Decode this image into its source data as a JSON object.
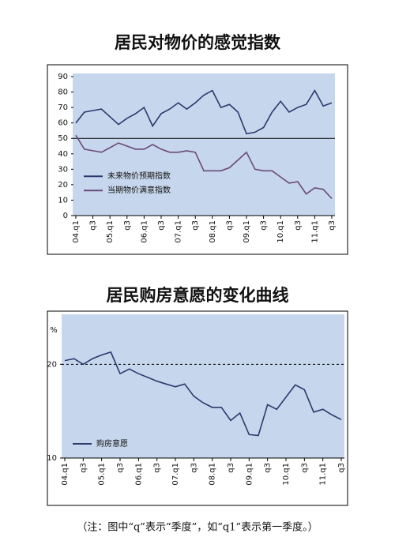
{
  "chart_data": [
    {
      "type": "line",
      "title": "居民对物价的感觉指数",
      "categories": [
        "04.q1",
        null,
        "q3",
        null,
        "05.q1",
        null,
        "q3",
        null,
        "06.q1",
        null,
        "q3",
        null,
        "07.q1",
        null,
        "q3",
        null,
        "08.q1",
        null,
        "q3",
        null,
        "09.q1",
        null,
        "q3",
        null,
        "10.q1",
        null,
        "q3",
        null,
        "11.q1",
        null,
        "q3"
      ],
      "series": [
        {
          "name": "未来物价预期指数",
          "color": "#2a3a6e",
          "values": [
            60,
            67,
            68,
            69,
            64,
            59,
            63,
            66,
            70,
            58,
            66,
            69,
            73,
            69,
            73,
            78,
            81,
            70,
            72,
            67,
            53,
            54,
            57,
            67,
            74,
            67,
            70,
            72,
            81,
            71,
            73
          ]
        },
        {
          "name": "当期物价满意指数",
          "color": "#6a4a78",
          "values": [
            52,
            43,
            42,
            41,
            44,
            47,
            45,
            43,
            43,
            46,
            43,
            41,
            41,
            42,
            41,
            29,
            29,
            29,
            31,
            36,
            41,
            30,
            29,
            29,
            25,
            21,
            22,
            14,
            18,
            17,
            11
          ]
        }
      ],
      "ylim": [
        0,
        90
      ],
      "yticks": [
        0,
        10,
        20,
        30,
        40,
        50,
        60,
        70,
        80,
        90
      ],
      "break_at": 50,
      "legend": "left"
    },
    {
      "type": "line",
      "title": "居民购房意愿的变化曲线",
      "y_label": "%",
      "categories": [
        "04.q1",
        null,
        "q3",
        null,
        "05.q1",
        null,
        "q3",
        null,
        "06.q1",
        null,
        "q3",
        null,
        "07.q1",
        null,
        "q3",
        null,
        "08.q1",
        null,
        "q3",
        null,
        "09.q1",
        null,
        "q3",
        null,
        "10.q1",
        null,
        "q3",
        null,
        "11.q1",
        null,
        "q3"
      ],
      "series": [
        {
          "name": "购房意愿",
          "color": "#2a3a6e",
          "values": [
            20.4,
            20.6,
            20.0,
            20.6,
            21.0,
            21.3,
            19.0,
            19.5,
            19.0,
            18.6,
            18.2,
            17.9,
            17.6,
            17.9,
            16.6,
            15.9,
            15.4,
            15.4,
            14.0,
            14.8,
            12.5,
            12.4,
            15.7,
            15.2,
            16.5,
            17.8,
            17.3,
            14.9,
            15.2,
            14.6,
            14.1
          ]
        }
      ],
      "ylim": [
        10,
        25
      ],
      "yticks": [
        10,
        20
      ],
      "grid": "dashed",
      "legend": "left"
    }
  ],
  "note": "（注：图中“q”表示“季度”，如“q1”表示第一季度。）"
}
